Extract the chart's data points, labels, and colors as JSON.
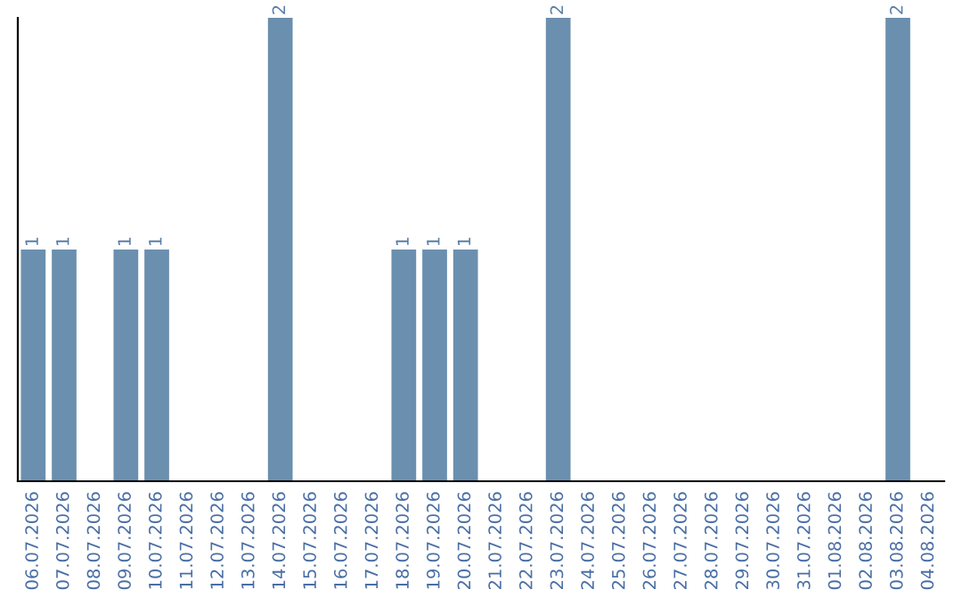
{
  "chart_data": {
    "type": "bar",
    "categories": [
      "06.07.2026",
      "07.07.2026",
      "08.07.2026",
      "09.07.2026",
      "10.07.2026",
      "11.07.2026",
      "12.07.2026",
      "13.07.2026",
      "14.07.2026",
      "15.07.2026",
      "16.07.2026",
      "17.07.2026",
      "18.07.2026",
      "19.07.2026",
      "20.07.2026",
      "21.07.2026",
      "22.07.2026",
      "23.07.2026",
      "24.07.2026",
      "25.07.2026",
      "26.07.2026",
      "27.07.2026",
      "28.07.2026",
      "29.07.2026",
      "30.07.2026",
      "31.07.2026",
      "01.08.2026",
      "02.08.2026",
      "03.08.2026",
      "04.08.2026"
    ],
    "values": [
      1,
      1,
      0,
      1,
      1,
      0,
      0,
      0,
      2,
      0,
      0,
      0,
      1,
      1,
      1,
      0,
      0,
      2,
      0,
      0,
      0,
      0,
      0,
      0,
      0,
      0,
      0,
      0,
      2,
      0
    ],
    "value_labels": [
      "1",
      "1",
      null,
      "1",
      "1",
      null,
      null,
      null,
      "2",
      null,
      null,
      null,
      "1",
      "1",
      "1",
      null,
      null,
      "2",
      null,
      null,
      null,
      null,
      null,
      null,
      null,
      null,
      null,
      null,
      "2",
      null
    ],
    "color": "#6b8fae",
    "ylim": [
      0,
      2
    ],
    "grid": false,
    "legend": false
  }
}
